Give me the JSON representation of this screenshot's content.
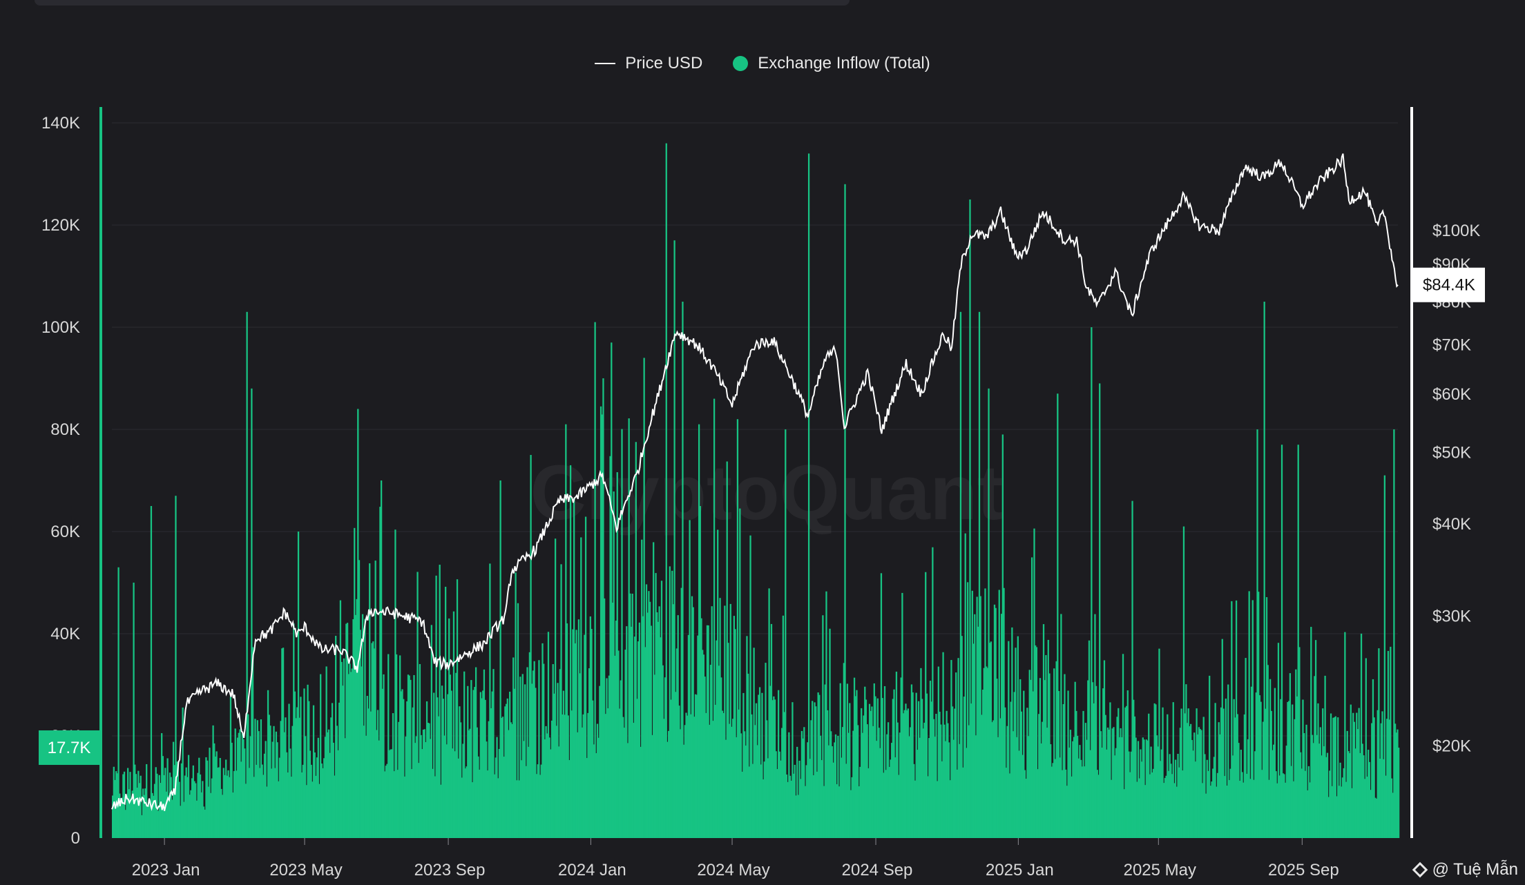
{
  "legend": {
    "price_label": "Price USD",
    "inflow_label": "Exchange Inflow (Total)"
  },
  "watermark": "CryptoQuant",
  "attribution": "@ Tuệ Mẫn",
  "colors": {
    "background": "#1c1c20",
    "inflow": "#17c383",
    "price": "#ffffff",
    "grid": "#2c2c32"
  },
  "chart_data": {
    "type": "bar",
    "title": "",
    "xlabel": "",
    "ylabel": "",
    "x_ticks": [
      "2023 Jan",
      "2023 May",
      "2023 Sep",
      "2024 Jan",
      "2024 May",
      "2024 Sep",
      "2025 Jan",
      "2025 May",
      "2025 Sep"
    ],
    "x_tick_dates": [
      "2023-01-01",
      "2023-05-01",
      "2023-09-01",
      "2024-01-01",
      "2024-05-01",
      "2024-09-01",
      "2025-01-01",
      "2025-05-01",
      "2025-09-01"
    ],
    "x_range": [
      "2022-11-17",
      "2025-11-22"
    ],
    "left_axis": {
      "ylim": [
        0,
        140000
      ],
      "ticks": [
        0,
        20000,
        40000,
        60000,
        80000,
        100000,
        120000,
        140000
      ],
      "tick_labels": [
        "0",
        "20K",
        "40K",
        "60K",
        "80K",
        "100K",
        "120K",
        "140K"
      ],
      "current_marker": "17.7K"
    },
    "right_axis": {
      "scale": "log",
      "ylim": [
        15000,
        140000
      ],
      "ticks": [
        20000,
        30000,
        40000,
        50000,
        60000,
        70000,
        80000,
        90000,
        100000
      ],
      "tick_labels": [
        "$20K",
        "$30K",
        "$40K",
        "$50K",
        "$60K",
        "$70K",
        "$80K",
        "$90K",
        "$100K"
      ],
      "current_marker": "$84.4K"
    },
    "series": [
      {
        "name": "Exchange Inflow (Total)",
        "type": "bar",
        "axis": "left",
        "baseline_points": [
          [
            "2022-11-17",
            9000
          ],
          [
            "2023-01-01",
            10000
          ],
          [
            "2023-03-01",
            13000
          ],
          [
            "2023-04-01",
            18000
          ],
          [
            "2023-05-01",
            19000
          ],
          [
            "2023-06-15",
            32000
          ],
          [
            "2023-08-01",
            22000
          ],
          [
            "2023-10-01",
            22000
          ],
          [
            "2023-12-01",
            28000
          ],
          [
            "2024-02-15",
            40000
          ],
          [
            "2024-03-20",
            34000
          ],
          [
            "2024-05-01",
            30000
          ],
          [
            "2024-06-15",
            18000
          ],
          [
            "2024-08-01",
            20000
          ],
          [
            "2024-09-15",
            21000
          ],
          [
            "2024-11-01",
            24000
          ],
          [
            "2024-12-01",
            32000
          ],
          [
            "2025-01-01",
            26000
          ],
          [
            "2025-02-15",
            22000
          ],
          [
            "2025-04-01",
            18000
          ],
          [
            "2025-05-01",
            17000
          ],
          [
            "2025-06-15",
            18000
          ],
          [
            "2025-07-15",
            22000
          ],
          [
            "2025-09-01",
            18000
          ],
          [
            "2025-10-15",
            17000
          ],
          [
            "2025-11-22",
            16000
          ]
        ],
        "peaks": [
          [
            "2022-11-22",
            53000
          ],
          [
            "2022-12-05",
            50000
          ],
          [
            "2022-12-20",
            65000
          ],
          [
            "2023-01-10",
            67000
          ],
          [
            "2023-03-12",
            103000
          ],
          [
            "2023-03-16",
            88000
          ],
          [
            "2023-04-25",
            60000
          ],
          [
            "2023-06-15",
            84000
          ],
          [
            "2023-07-05",
            70000
          ],
          [
            "2023-10-15",
            70000
          ],
          [
            "2023-11-10",
            75000
          ],
          [
            "2023-12-10",
            81000
          ],
          [
            "2024-01-04",
            101000
          ],
          [
            "2024-01-11",
            90000
          ],
          [
            "2024-01-18",
            97000
          ],
          [
            "2024-02-15",
            94000
          ],
          [
            "2024-03-05",
            136000
          ],
          [
            "2024-03-12",
            117000
          ],
          [
            "2024-03-19",
            105000
          ],
          [
            "2024-04-15",
            86000
          ],
          [
            "2024-05-05",
            82000
          ],
          [
            "2024-06-15",
            80000
          ],
          [
            "2024-07-05",
            134000
          ],
          [
            "2024-08-05",
            128000
          ],
          [
            "2024-11-12",
            103000
          ],
          [
            "2024-11-20",
            125000
          ],
          [
            "2024-11-28",
            103000
          ],
          [
            "2024-12-06",
            88000
          ],
          [
            "2024-12-18",
            79000
          ],
          [
            "2025-02-03",
            87000
          ],
          [
            "2025-03-04",
            100000
          ],
          [
            "2025-03-11",
            89000
          ],
          [
            "2025-04-08",
            66000
          ],
          [
            "2025-05-22",
            61000
          ],
          [
            "2025-07-24",
            80000
          ],
          [
            "2025-07-30",
            105000
          ],
          [
            "2025-08-14",
            77000
          ],
          [
            "2025-08-28",
            77000
          ],
          [
            "2025-11-10",
            71000
          ],
          [
            "2025-11-18",
            80000
          ]
        ],
        "last_value": 17700
      },
      {
        "name": "Price USD",
        "type": "line",
        "axis": "right",
        "points": [
          [
            "2022-11-17",
            16500
          ],
          [
            "2022-12-01",
            17000
          ],
          [
            "2022-12-31",
            16500
          ],
          [
            "2023-01-10",
            17300
          ],
          [
            "2023-01-20",
            22800
          ],
          [
            "2023-02-01",
            23700
          ],
          [
            "2023-02-15",
            24300
          ],
          [
            "2023-03-01",
            23500
          ],
          [
            "2023-03-10",
            20300
          ],
          [
            "2023-03-20",
            28000
          ],
          [
            "2023-04-01",
            28500
          ],
          [
            "2023-04-14",
            30400
          ],
          [
            "2023-04-25",
            28300
          ],
          [
            "2023-05-01",
            29000
          ],
          [
            "2023-05-15",
            27000
          ],
          [
            "2023-06-01",
            27000
          ],
          [
            "2023-06-15",
            25500
          ],
          [
            "2023-06-25",
            30500
          ],
          [
            "2023-07-15",
            30300
          ],
          [
            "2023-08-10",
            29500
          ],
          [
            "2023-08-20",
            26000
          ],
          [
            "2023-09-01",
            25800
          ],
          [
            "2023-09-15",
            26600
          ],
          [
            "2023-10-01",
            27500
          ],
          [
            "2023-10-20",
            30000
          ],
          [
            "2023-10-25",
            34500
          ],
          [
            "2023-11-15",
            37000
          ],
          [
            "2023-12-05",
            43000
          ],
          [
            "2023-12-20",
            43500
          ],
          [
            "2024-01-11",
            46500
          ],
          [
            "2024-01-23",
            39500
          ],
          [
            "2024-02-10",
            47000
          ],
          [
            "2024-02-28",
            60000
          ],
          [
            "2024-03-14",
            73000
          ],
          [
            "2024-04-01",
            70000
          ],
          [
            "2024-04-15",
            65000
          ],
          [
            "2024-05-01",
            58000
          ],
          [
            "2024-05-20",
            70000
          ],
          [
            "2024-06-05",
            71000
          ],
          [
            "2024-06-25",
            61000
          ],
          [
            "2024-07-05",
            56000
          ],
          [
            "2024-07-20",
            67000
          ],
          [
            "2024-07-29",
            69000
          ],
          [
            "2024-08-05",
            54000
          ],
          [
            "2024-08-25",
            64000
          ],
          [
            "2024-09-06",
            53500
          ],
          [
            "2024-09-27",
            66000
          ],
          [
            "2024-10-10",
            60000
          ],
          [
            "2024-10-29",
            72500
          ],
          [
            "2024-11-05",
            69000
          ],
          [
            "2024-11-13",
            90000
          ],
          [
            "2024-11-22",
            99000
          ],
          [
            "2024-12-05",
            98000
          ],
          [
            "2024-12-17",
            106000
          ],
          [
            "2024-12-30",
            92500
          ],
          [
            "2025-01-08",
            94000
          ],
          [
            "2025-01-22",
            106000
          ],
          [
            "2025-02-10",
            97000
          ],
          [
            "2025-02-20",
            97000
          ],
          [
            "2025-02-28",
            84000
          ],
          [
            "2025-03-10",
            79000
          ],
          [
            "2025-03-25",
            88000
          ],
          [
            "2025-04-08",
            76500
          ],
          [
            "2025-04-25",
            94000
          ],
          [
            "2025-05-10",
            103000
          ],
          [
            "2025-05-22",
            111000
          ],
          [
            "2025-06-05",
            101500
          ],
          [
            "2025-06-22",
            100000
          ],
          [
            "2025-07-14",
            122000
          ],
          [
            "2025-07-30",
            118000
          ],
          [
            "2025-08-14",
            124000
          ],
          [
            "2025-09-01",
            108000
          ],
          [
            "2025-09-15",
            116000
          ],
          [
            "2025-10-06",
            125000
          ],
          [
            "2025-10-11",
            110000
          ],
          [
            "2025-10-25",
            113000
          ],
          [
            "2025-11-04",
            101000
          ],
          [
            "2025-11-10",
            106000
          ],
          [
            "2025-11-21",
            84400
          ]
        ],
        "last_value": 84400
      }
    ],
    "grid": true,
    "legend_position": "top-center"
  }
}
